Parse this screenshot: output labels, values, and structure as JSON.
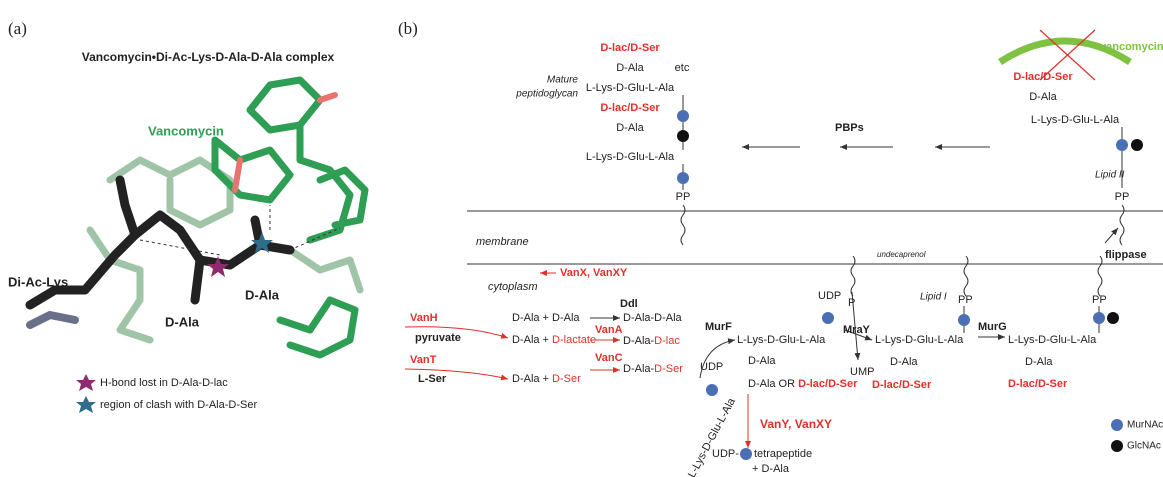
{
  "panel_a": {
    "label": "(a)",
    "title": "Vancomycin•Di-Ac-Lys-D-Ala-D-Ala complex",
    "vancomycin": "Vancomycin",
    "di_ac_lys": "Di-Ac-Lys",
    "d_ala_1": "D-Ala",
    "d_ala_2": "D-Ala",
    "legend": [
      "H-bond lost in D-Ala-D-lac",
      "region of clash with D-Ala-D-Ser"
    ]
  },
  "panel_b": {
    "label": "(b)",
    "mature": [
      "Mature",
      "peptidoglycan"
    ],
    "top_stack": [
      "D-lac/D-Ser",
      "D-Ala",
      "L-Lys-D-Glu-L-Ala",
      "D-lac/D-Ser",
      "D-Ala",
      "L-Lys-D-Glu-L-Ala",
      "PP"
    ],
    "etc": "etc",
    "pbps": "PBPs",
    "vancomycin": "vancomycin",
    "lipid2_stack": [
      "D-lac/D-Ser",
      "D-Ala",
      "L-Lys-D-Glu-L-Ala"
    ],
    "lipid2": "Lipid II",
    "lipid2_pp": "PP",
    "membrane": "membrane",
    "cytoplasm": "cytoplasm",
    "undecaprenol": "undecaprenol",
    "flippase": "flippase",
    "vanx": "VanX, VanXY",
    "ddl": "Ddl",
    "vanh": "VanH",
    "pyruvate": "pyruvate",
    "vant": "VanT",
    "lser": "L-Ser",
    "substrates": [
      [
        "D-Ala + D-Ala"
      ],
      [
        "D-Ala + ",
        "D-lactate"
      ],
      [
        "D-Ala + ",
        "D-Ser"
      ]
    ],
    "products": [
      [
        "D-Ala-D-Ala"
      ],
      [
        "D-Ala-",
        "D-lac"
      ],
      [
        "D-Ala-",
        "D-Ser"
      ]
    ],
    "ligases": [
      "VanA",
      "VanC"
    ],
    "murf": "MurF",
    "udp_1": "UDP",
    "udp_side": "L-Lys-D-Glu-L-Ala",
    "udp_stack": [
      "L-Lys-D-Glu-L-Ala",
      "D-Ala"
    ],
    "udp_stack_last": [
      "D-Ala OR ",
      "D-lac/D-Ser"
    ],
    "mray": "MraY",
    "udp_2": "UDP",
    "p": "P",
    "ump": "UMP",
    "lipid1_stack": [
      "L-Lys-D-Glu-L-Ala",
      "D-Ala",
      "D-lac/D-Ser"
    ],
    "lipid1": "Lipid I",
    "lipid1_pp": "PP",
    "murg": "MurG",
    "lipid2c_stack": [
      "L-Lys-D-Glu-L-Ala",
      "D-Ala",
      "D-lac/D-Ser"
    ],
    "lipid2c_pp": "PP",
    "vany": "VanY, VanXY",
    "product": [
      "UDP-",
      "tetrapeptide",
      "+ D-Ala"
    ],
    "legend": [
      "MurNAc",
      "GlcNAc"
    ]
  }
}
